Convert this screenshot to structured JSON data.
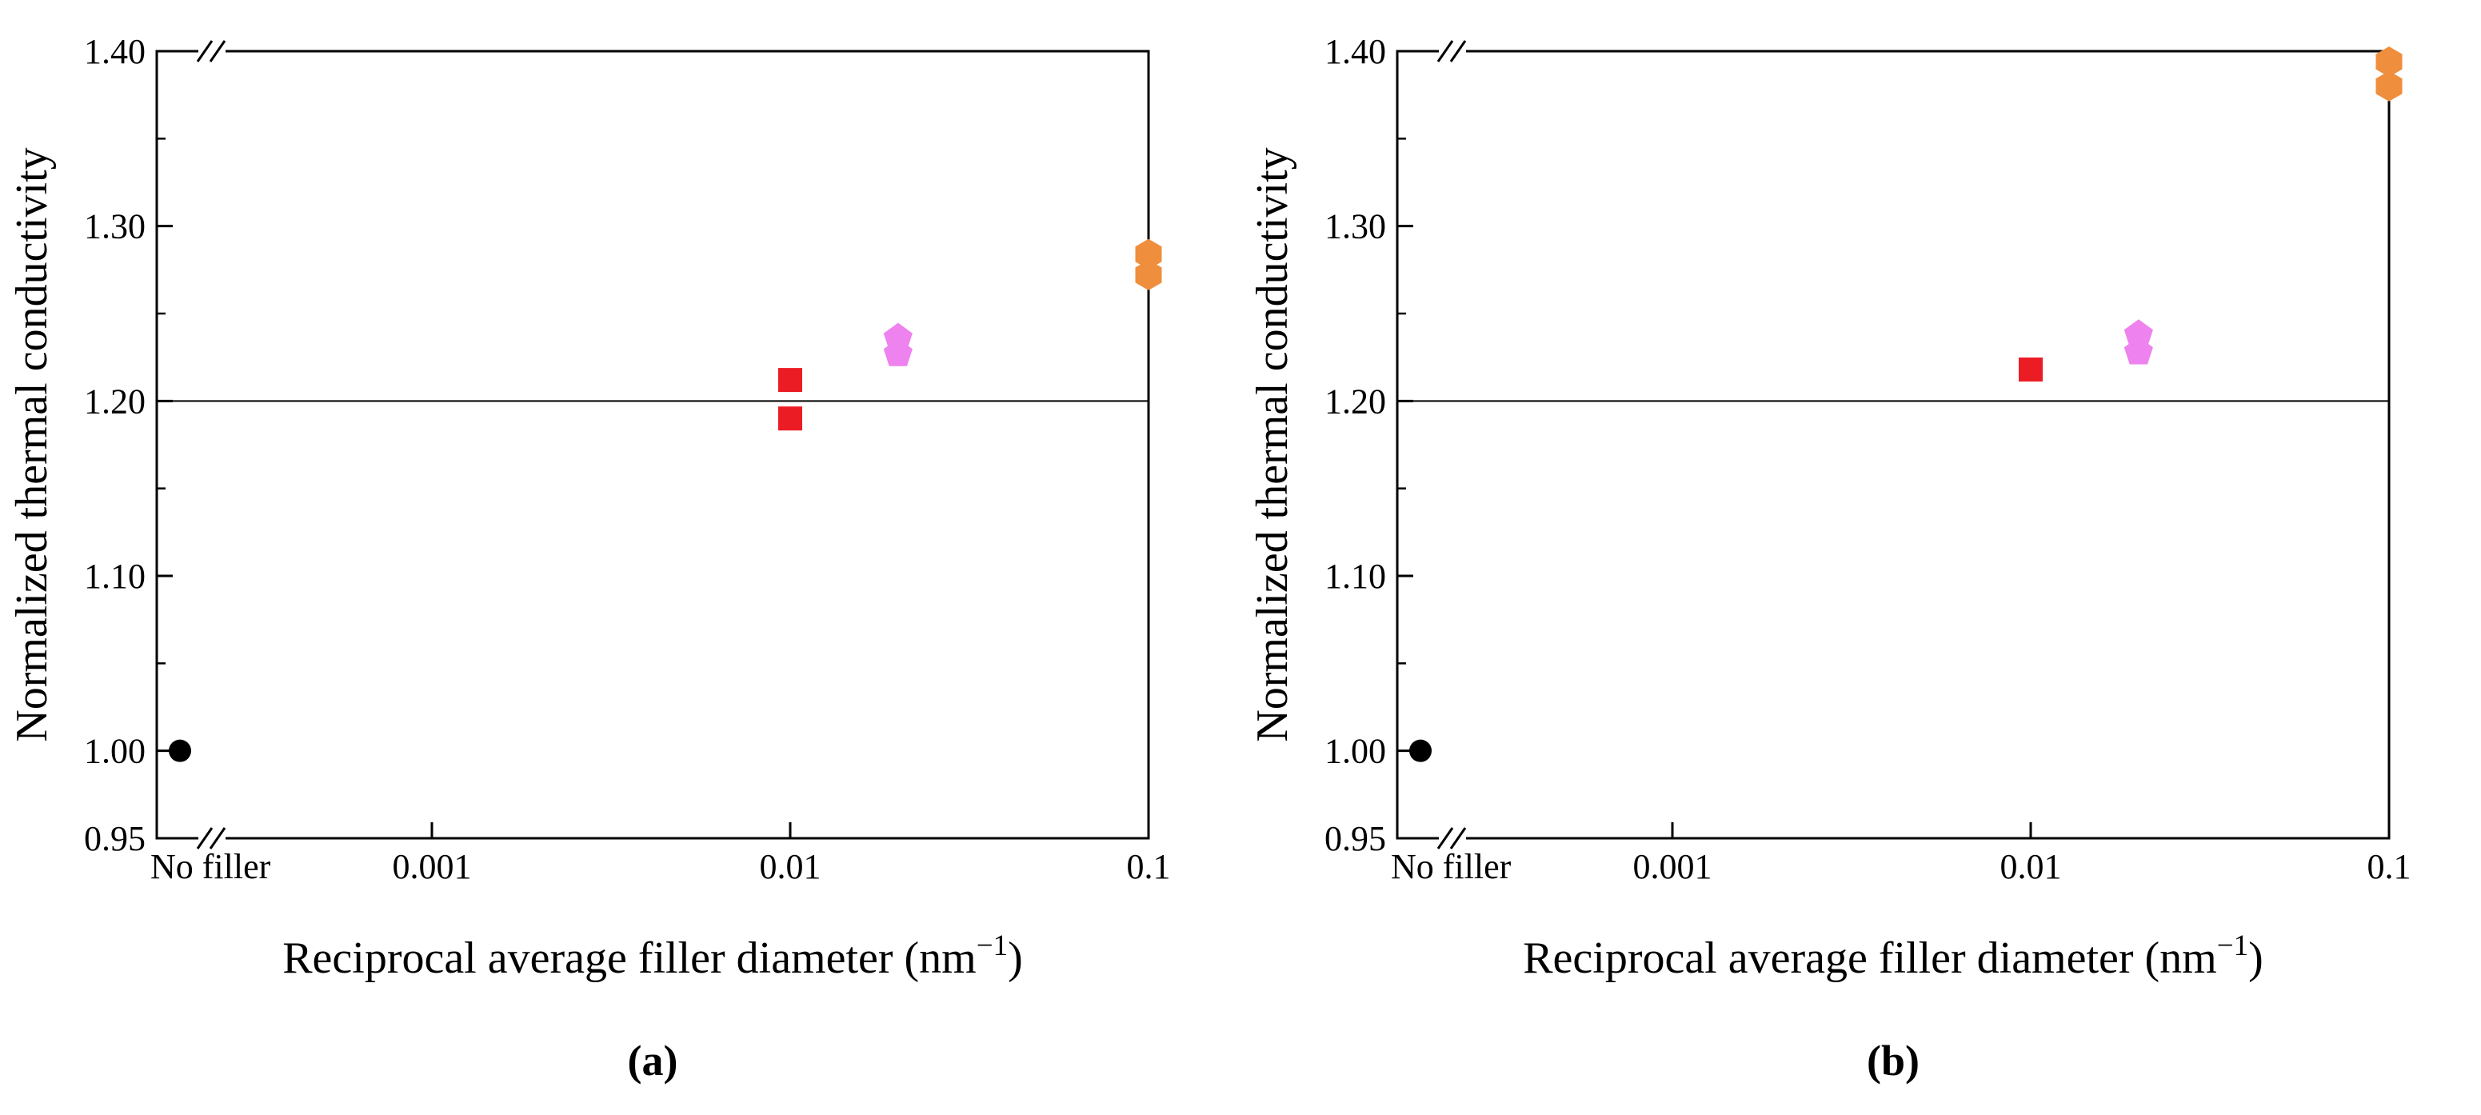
{
  "page": {
    "background": "#ffffff"
  },
  "chart_data": [
    {
      "type": "scatter",
      "panel_label": "(a)",
      "ylabel": "Normalized thermal conductivity",
      "xlabel": {
        "pre": "Reciprocal average filler diameter (nm",
        "sup": "−1",
        "post": ")"
      },
      "x_scale": "log",
      "x_axis_break": true,
      "no_filler_label": "No filler",
      "x_ticks": [
        0.001,
        0.01,
        0.1
      ],
      "x_tick_labels": [
        "0.001",
        "0.01",
        "0.1"
      ],
      "ylim": [
        0.95,
        1.4
      ],
      "y_ticks": [
        0.95,
        1.0,
        1.1,
        1.2,
        1.3,
        1.4
      ],
      "y_tick_labels": [
        "0.95",
        "1.00",
        "1.10",
        "1.20",
        "1.30",
        "1.40"
      ],
      "y_minor_ticks": [
        1.05,
        1.15,
        1.25,
        1.35
      ],
      "reference_line_y": 1.2,
      "series": [
        {
          "name": "black-circle",
          "marker": "circle",
          "color": "#000000",
          "points": [
            {
              "x": "No filler",
              "y": 1.0
            }
          ]
        },
        {
          "name": "red-squares",
          "marker": "square",
          "color": "#ec1c24",
          "points": [
            {
              "x": 0.01,
              "y": 1.212
            },
            {
              "x": 0.01,
              "y": 1.19
            }
          ]
        },
        {
          "name": "pink-pentagons",
          "marker": "pentagon",
          "color": "#ee82ee",
          "points": [
            {
              "x": 0.02,
              "y": 1.236
            },
            {
              "x": 0.02,
              "y": 1.227
            }
          ]
        },
        {
          "name": "orange-hexagons",
          "marker": "hexagon",
          "color": "#ef8e3d",
          "points": [
            {
              "x": 0.1,
              "y": 1.284
            },
            {
              "x": 0.1,
              "y": 1.272
            }
          ]
        }
      ]
    },
    {
      "type": "scatter",
      "panel_label": "(b)",
      "ylabel": "Normalized thermal conductivity",
      "xlabel": {
        "pre": "Reciprocal average filler diameter (nm",
        "sup": "−1",
        "post": ")"
      },
      "x_scale": "log",
      "x_axis_break": true,
      "no_filler_label": "No filler",
      "x_ticks": [
        0.001,
        0.01,
        0.1
      ],
      "x_tick_labels": [
        "0.001",
        "0.01",
        "0.1"
      ],
      "ylim": [
        0.95,
        1.4
      ],
      "y_ticks": [
        0.95,
        1.0,
        1.1,
        1.2,
        1.3,
        1.4
      ],
      "y_tick_labels": [
        "0.95",
        "1.00",
        "1.10",
        "1.20",
        "1.30",
        "1.40"
      ],
      "y_minor_ticks": [
        1.05,
        1.15,
        1.25,
        1.35
      ],
      "reference_line_y": 1.2,
      "series": [
        {
          "name": "black-circle",
          "marker": "circle",
          "color": "#000000",
          "points": [
            {
              "x": "No filler",
              "y": 1.0
            }
          ]
        },
        {
          "name": "red-squares",
          "marker": "square",
          "color": "#ec1c24",
          "points": [
            {
              "x": 0.01,
              "y": 1.218
            }
          ]
        },
        {
          "name": "pink-pentagons",
          "marker": "pentagon",
          "color": "#ee82ee",
          "points": [
            {
              "x": 0.02,
              "y": 1.238
            },
            {
              "x": 0.02,
              "y": 1.228
            }
          ]
        },
        {
          "name": "orange-hexagons",
          "marker": "hexagon",
          "color": "#ef8e3d",
          "points": [
            {
              "x": 0.1,
              "y": 1.394
            },
            {
              "x": 0.1,
              "y": 1.38
            }
          ]
        }
      ]
    }
  ]
}
